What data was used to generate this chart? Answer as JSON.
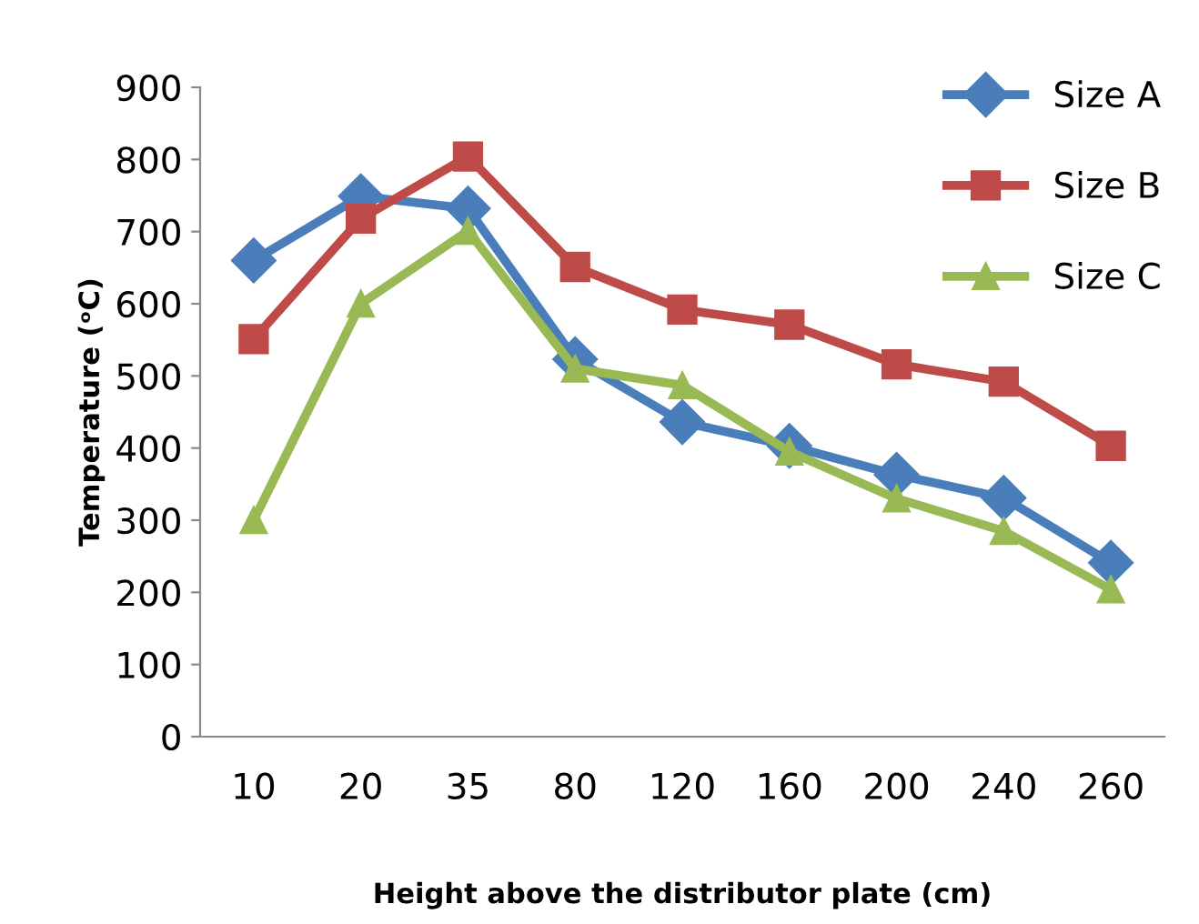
{
  "chart_data": {
    "type": "line",
    "xlabel": "Height above the distributor plate (cm)",
    "ylabel": "Temperature (ᵒC)",
    "categories": [
      "10",
      "20",
      "35",
      "80",
      "120",
      "160",
      "200",
      "240",
      "260"
    ],
    "series": [
      {
        "name": "Size A",
        "color": "#4a7ebb",
        "marker": "diamond",
        "values": [
          660,
          749,
          732,
          523,
          436,
          403,
          363,
          331,
          241
        ]
      },
      {
        "name": "Size B",
        "color": "#be4b48",
        "marker": "square",
        "values": [
          551,
          718,
          804,
          651,
          592,
          571,
          516,
          492,
          403
        ]
      },
      {
        "name": "Size C",
        "color": "#98b954",
        "marker": "triangle",
        "values": [
          300,
          600,
          701,
          510,
          487,
          395,
          330,
          285,
          204
        ]
      }
    ],
    "ylim": [
      0,
      900
    ],
    "yticks": [
      0,
      100,
      200,
      300,
      400,
      500,
      600,
      700,
      800,
      900
    ],
    "grid": false,
    "legend": "top right",
    "line_style": "solid"
  }
}
